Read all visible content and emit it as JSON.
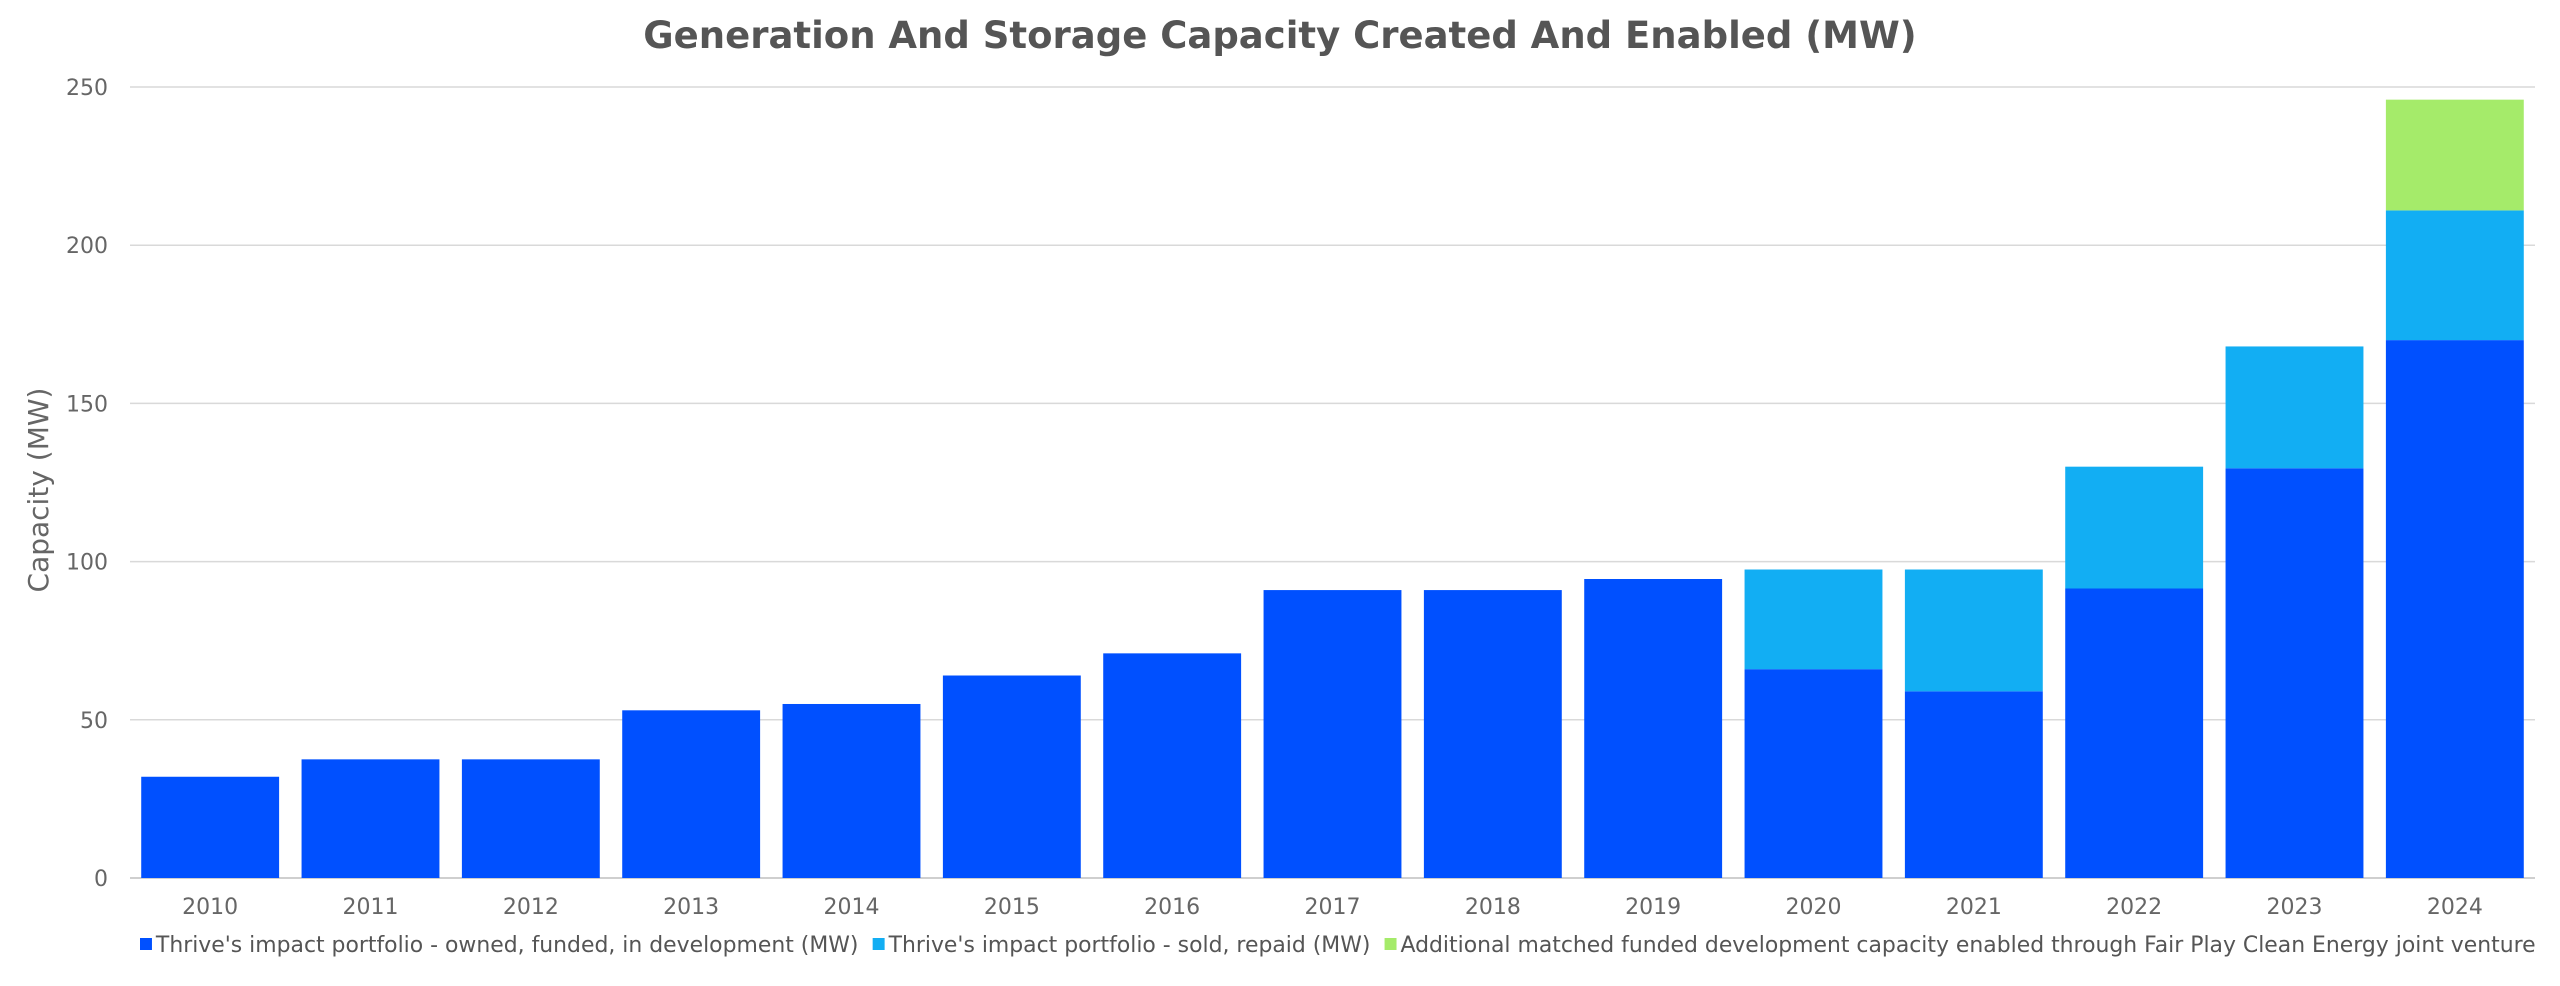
{
  "chart_data": {
    "type": "bar",
    "stacked": true,
    "title": "Generation And Storage Capacity Created And Enabled (MW)",
    "xlabel": "",
    "ylabel": "Capacity (MW)",
    "ylim": [
      0,
      250
    ],
    "yticks": [
      0,
      50,
      100,
      150,
      200,
      250
    ],
    "grid": true,
    "legend_position": "bottom",
    "categories": [
      "2010",
      "2011",
      "2012",
      "2013",
      "2014",
      "2015",
      "2016",
      "2017",
      "2018",
      "2019",
      "2020",
      "2021",
      "2022",
      "2023",
      "2024"
    ],
    "series": [
      {
        "name": "Thrive's impact portfolio - owned, funded, in development (MW)",
        "color": "#0050FF",
        "values": [
          32,
          37.5,
          37.5,
          53,
          55,
          64,
          71,
          91,
          91,
          94.5,
          66,
          59,
          91.5,
          129.5,
          170
        ]
      },
      {
        "name": "Thrive's impact portfolio - sold, repaid (MW)",
        "color": "#12AEF3",
        "values": [
          0,
          0,
          0,
          0,
          0,
          0,
          0,
          0,
          0,
          0,
          31.5,
          38.5,
          38.5,
          38.5,
          41
        ]
      },
      {
        "name": "Additional matched funded development capacity enabled through Fair Play Clean Energy joint venture",
        "color": "#A5EB6A",
        "values": [
          0,
          0,
          0,
          0,
          0,
          0,
          0,
          0,
          0,
          0,
          0,
          0,
          0,
          0,
          35
        ]
      }
    ]
  }
}
